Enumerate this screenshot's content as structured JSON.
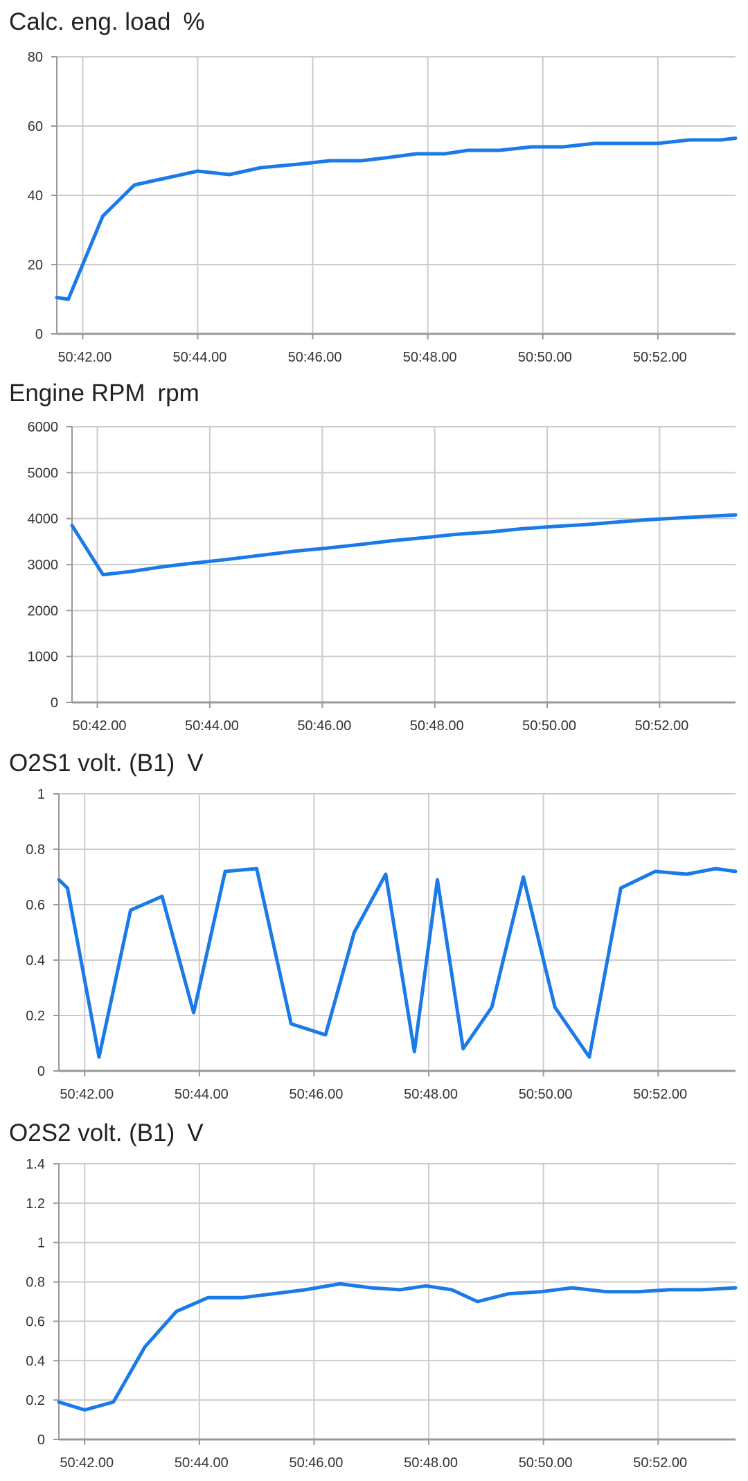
{
  "colors": {
    "line": "#1a7ae8",
    "grid": "#cccccc",
    "axis": "#999999",
    "text": "#222222"
  },
  "chart_data": [
    {
      "type": "line",
      "title": "Calc. eng. load",
      "unit": "%",
      "xlim": [
        41.55,
        53.35
      ],
      "ylim": [
        0,
        80
      ],
      "yticks": [
        0,
        20,
        40,
        60,
        80
      ],
      "ytick_labels": [
        "0",
        "20",
        "40",
        "60",
        "80"
      ],
      "xticks": [
        42,
        44,
        46,
        48,
        50,
        52
      ],
      "xtick_labels": [
        "50:42.00",
        "50:44.00",
        "50:46.00",
        "50:48.00",
        "50:50.00",
        "50:52.00"
      ],
      "grid": true,
      "series": [
        {
          "x": [
            41.55,
            41.75,
            42.35,
            42.9,
            43.45,
            44.0,
            44.55,
            45.1,
            45.75,
            46.3,
            46.85,
            47.35,
            47.8,
            48.3,
            48.7,
            49.25,
            49.8,
            50.35,
            50.9,
            51.45,
            52.0,
            52.55,
            53.1,
            53.35
          ],
          "y": [
            10.5,
            10,
            34,
            43,
            45,
            47,
            46,
            48,
            49,
            50,
            50,
            51,
            52,
            52,
            53,
            53,
            54,
            54,
            55,
            55,
            55,
            56,
            56,
            56.5
          ]
        }
      ]
    },
    {
      "type": "line",
      "title": "Engine RPM",
      "unit": "rpm",
      "xlim": [
        41.55,
        53.35
      ],
      "ylim": [
        0,
        6000
      ],
      "yticks": [
        0,
        1000,
        2000,
        3000,
        4000,
        5000,
        6000
      ],
      "ytick_labels": [
        "0",
        "1000",
        "2000",
        "3000",
        "4000",
        "5000",
        "6000"
      ],
      "xticks": [
        42,
        44,
        46,
        48,
        50,
        52
      ],
      "xtick_labels": [
        "50:42.00",
        "50:44.00",
        "50:46.00",
        "50:48.00",
        "50:50.00",
        "50:52.00"
      ],
      "grid": true,
      "series": [
        {
          "x": [
            41.55,
            42.1,
            42.6,
            43.15,
            43.7,
            44.3,
            44.9,
            45.5,
            46.1,
            46.7,
            47.25,
            47.85,
            48.4,
            49.0,
            49.55,
            50.15,
            50.7,
            51.3,
            51.85,
            52.45,
            53.0,
            53.35
          ],
          "y": [
            3850,
            2780,
            2850,
            2950,
            3030,
            3110,
            3200,
            3290,
            3360,
            3440,
            3520,
            3590,
            3660,
            3710,
            3780,
            3830,
            3870,
            3930,
            3980,
            4020,
            4060,
            4080
          ]
        }
      ]
    },
    {
      "type": "line",
      "title": "O2S1 volt. (B1)",
      "unit": "V",
      "xlim": [
        41.55,
        53.35
      ],
      "ylim": [
        0,
        1
      ],
      "yticks": [
        0,
        0.2,
        0.4,
        0.6,
        0.8,
        1
      ],
      "ytick_labels": [
        "0",
        "0.2",
        "0.4",
        "0.6",
        "0.8",
        "1"
      ],
      "xticks": [
        42,
        44,
        46,
        48,
        50,
        52
      ],
      "xtick_labels": [
        "50:42.00",
        "50:44.00",
        "50:46.00",
        "50:48.00",
        "50:50.00",
        "50:52.00"
      ],
      "grid": true,
      "series": [
        {
          "x": [
            41.55,
            41.7,
            42.25,
            42.8,
            43.35,
            43.9,
            44.45,
            45.0,
            45.6,
            46.2,
            46.7,
            47.25,
            47.75,
            48.15,
            48.6,
            49.1,
            49.65,
            50.2,
            50.8,
            51.35,
            51.95,
            52.5,
            53.0,
            53.35
          ],
          "y": [
            0.69,
            0.66,
            0.05,
            0.58,
            0.63,
            0.21,
            0.72,
            0.73,
            0.17,
            0.13,
            0.5,
            0.71,
            0.07,
            0.69,
            0.08,
            0.23,
            0.7,
            0.23,
            0.05,
            0.66,
            0.72,
            0.71,
            0.73,
            0.72
          ]
        }
      ]
    },
    {
      "type": "line",
      "title": "O2S2 volt. (B1)",
      "unit": "V",
      "xlim": [
        41.55,
        53.35
      ],
      "ylim": [
        0,
        1.4
      ],
      "yticks": [
        0,
        0.2,
        0.4,
        0.6,
        0.8,
        1,
        1.2,
        1.4
      ],
      "ytick_labels": [
        "0",
        "0.2",
        "0.4",
        "0.6",
        "0.8",
        "1",
        "1.2",
        "1.4"
      ],
      "xticks": [
        42,
        44,
        46,
        48,
        50,
        52
      ],
      "xtick_labels": [
        "50:42.00",
        "50:44.00",
        "50:46.00",
        "50:48.00",
        "50:50.00",
        "50:52.00"
      ],
      "grid": true,
      "series": [
        {
          "x": [
            41.55,
            42.0,
            42.5,
            43.05,
            43.6,
            44.15,
            44.75,
            45.3,
            45.85,
            46.45,
            47.0,
            47.5,
            47.95,
            48.4,
            48.85,
            49.4,
            49.95,
            50.5,
            51.1,
            51.65,
            52.2,
            52.75,
            53.35
          ],
          "y": [
            0.19,
            0.15,
            0.19,
            0.47,
            0.65,
            0.72,
            0.72,
            0.74,
            0.76,
            0.79,
            0.77,
            0.76,
            0.78,
            0.76,
            0.7,
            0.74,
            0.75,
            0.77,
            0.75,
            0.75,
            0.76,
            0.76,
            0.77
          ]
        }
      ]
    }
  ]
}
